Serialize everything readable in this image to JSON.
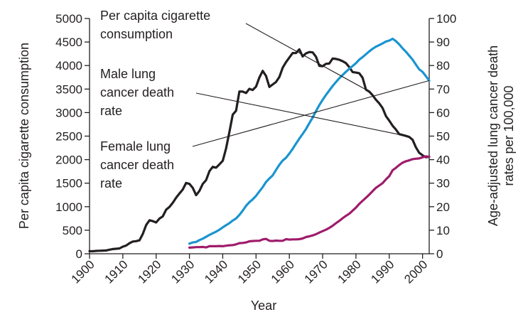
{
  "chart_data": {
    "type": "line",
    "title": "",
    "xlabel": "Year",
    "ylabel_left": "Per capita cigarette consumption",
    "ylabel_right": [
      "Age-adjusted lung cancer death",
      "rates per 100,000"
    ],
    "xlim": [
      1900,
      2002
    ],
    "ylim_left": [
      0,
      5000
    ],
    "ylim_right": [
      0,
      100
    ],
    "x_ticks": [
      1900,
      1910,
      1920,
      1930,
      1940,
      1950,
      1960,
      1970,
      1980,
      1990,
      2000
    ],
    "y_ticks_left": [
      0,
      500,
      1000,
      1500,
      2000,
      2500,
      3000,
      3500,
      4000,
      4500,
      5000
    ],
    "y_ticks_right": [
      0,
      10,
      20,
      30,
      40,
      50,
      60,
      70,
      80,
      90,
      100
    ],
    "grid": false,
    "series": [
      {
        "name": "Per capita cigarette consumption",
        "axis": "left",
        "color": "#231f20",
        "x": [
          1900,
          1901,
          1902,
          1903,
          1904,
          1905,
          1906,
          1907,
          1908,
          1909,
          1910,
          1911,
          1912,
          1913,
          1914,
          1915,
          1916,
          1917,
          1918,
          1919,
          1920,
          1921,
          1922,
          1923,
          1924,
          1925,
          1926,
          1927,
          1928,
          1929,
          1930,
          1931,
          1932,
          1933,
          1934,
          1935,
          1936,
          1937,
          1938,
          1939,
          1940,
          1941,
          1942,
          1943,
          1944,
          1945,
          1946,
          1947,
          1948,
          1949,
          1950,
          1951,
          1952,
          1953,
          1954,
          1955,
          1956,
          1957,
          1958,
          1959,
          1960,
          1961,
          1962,
          1963,
          1964,
          1965,
          1966,
          1967,
          1968,
          1969,
          1970,
          1971,
          1972,
          1973,
          1974,
          1975,
          1976,
          1977,
          1978,
          1979,
          1980,
          1981,
          1982,
          1983,
          1984,
          1985,
          1986,
          1987,
          1988,
          1989,
          1990,
          1991,
          1992,
          1993,
          1994,
          1995,
          1996,
          1997,
          1998,
          1999,
          2000,
          2001,
          2002
        ],
        "values": [
          54,
          53,
          60,
          64,
          66,
          70,
          86,
          99,
          105,
          113,
          151,
          173,
          223,
          260,
          267,
          285,
          421,
          611,
          711,
          693,
          665,
          748,
          795,
          936,
          995,
          1085,
          1191,
          1279,
          1366,
          1504,
          1485,
          1399,
          1245,
          1334,
          1483,
          1564,
          1754,
          1847,
          1830,
          1900,
          1976,
          2236,
          2585,
          2956,
          3039,
          3449,
          3446,
          3416,
          3505,
          3480,
          3552,
          3744,
          3886,
          3778,
          3546,
          3597,
          3650,
          3755,
          3953,
          4073,
          4171,
          4266,
          4265,
          4345,
          4194,
          4258,
          4287,
          4280,
          4186,
          3993,
          3985,
          4037,
          4043,
          4148,
          4141,
          4122,
          4092,
          4051,
          3967,
          3861,
          3851,
          3836,
          3739,
          3488,
          3446,
          3370,
          3274,
          3197,
          3096,
          2926,
          2828,
          2720,
          2641,
          2543,
          2524,
          2505,
          2482,
          2423,
          2261,
          2146,
          2092,
          2051,
          2062
        ]
      },
      {
        "name": "Male lung cancer death rate",
        "axis": "right",
        "color": "#1a94d0",
        "x": [
          1930,
          1931,
          1932,
          1933,
          1934,
          1935,
          1936,
          1937,
          1938,
          1939,
          1940,
          1941,
          1942,
          1943,
          1944,
          1945,
          1946,
          1947,
          1948,
          1949,
          1950,
          1951,
          1952,
          1953,
          1954,
          1955,
          1956,
          1957,
          1958,
          1959,
          1960,
          1961,
          1962,
          1963,
          1964,
          1965,
          1966,
          1967,
          1968,
          1969,
          1970,
          1971,
          1972,
          1973,
          1974,
          1975,
          1976,
          1977,
          1978,
          1979,
          1980,
          1981,
          1982,
          1983,
          1984,
          1985,
          1986,
          1987,
          1988,
          1989,
          1990,
          1991,
          1992,
          1993,
          1994,
          1995,
          1996,
          1997,
          1998,
          1999,
          2000,
          2001,
          2002
        ],
        "values": [
          4.3,
          4.8,
          5.0,
          5.8,
          6.4,
          7.2,
          8.0,
          8.7,
          9.4,
          10.2,
          11.2,
          12.1,
          13.0,
          14.1,
          15.0,
          16.5,
          18.3,
          20.4,
          21.9,
          23.1,
          24.6,
          26.5,
          28.3,
          30.5,
          32.0,
          33.3,
          35.6,
          37.8,
          39.6,
          40.8,
          42.6,
          44.6,
          46.8,
          48.9,
          50.9,
          53.0,
          55.5,
          57.9,
          60.6,
          63.2,
          65.4,
          67.5,
          69.4,
          71.3,
          73.0,
          74.6,
          76.0,
          77.3,
          78.6,
          79.8,
          81.0,
          82.5,
          83.6,
          84.8,
          86.0,
          87.1,
          88.0,
          88.7,
          89.4,
          90.2,
          90.6,
          91.4,
          90.4,
          89.0,
          87.3,
          85.9,
          84.2,
          82.5,
          80.4,
          78.4,
          77.3,
          75.5,
          73.6
        ]
      },
      {
        "name": "Female lung cancer death rate",
        "axis": "right",
        "color": "#9e1c6b",
        "x": [
          1930,
          1931,
          1932,
          1933,
          1934,
          1935,
          1936,
          1937,
          1938,
          1939,
          1940,
          1941,
          1942,
          1943,
          1944,
          1945,
          1946,
          1947,
          1948,
          1949,
          1950,
          1951,
          1952,
          1953,
          1954,
          1955,
          1956,
          1957,
          1958,
          1959,
          1960,
          1961,
          1962,
          1963,
          1964,
          1965,
          1966,
          1967,
          1968,
          1969,
          1970,
          1971,
          1972,
          1973,
          1974,
          1975,
          1976,
          1977,
          1978,
          1979,
          1980,
          1981,
          1982,
          1983,
          1984,
          1985,
          1986,
          1987,
          1988,
          1989,
          1990,
          1991,
          1992,
          1993,
          1994,
          1995,
          1996,
          1997,
          1998,
          1999,
          2000,
          2001,
          2002
        ],
        "values": [
          2.6,
          2.7,
          2.8,
          2.8,
          2.9,
          2.7,
          3.2,
          3.2,
          3.2,
          3.3,
          3.2,
          3.4,
          3.6,
          3.7,
          4.0,
          4.5,
          4.6,
          4.8,
          5.3,
          5.4,
          5.5,
          5.5,
          6.1,
          6.3,
          5.5,
          5.4,
          5.6,
          5.5,
          5.5,
          6.2,
          6.0,
          6.1,
          6.1,
          6.2,
          6.5,
          7.1,
          7.4,
          7.8,
          8.3,
          9.0,
          9.6,
          10.2,
          11.0,
          11.9,
          13.0,
          14.0,
          15.1,
          16.1,
          17.0,
          18.3,
          19.6,
          21.2,
          22.5,
          23.8,
          25.1,
          26.6,
          28.0,
          29.0,
          30.0,
          31.6,
          33.0,
          35.5,
          36.5,
          37.7,
          38.7,
          39.3,
          39.7,
          40.2,
          40.4,
          40.5,
          41.0,
          41.4,
          41.2
        ]
      }
    ],
    "annotations": [
      {
        "id": "cig",
        "lines": [
          "Per capita cigarette",
          "consumption"
        ],
        "target_series": 0,
        "target_x": 1983
      },
      {
        "id": "male",
        "lines": [
          "Male lung",
          "cancer death",
          "rate"
        ],
        "target_series": 0,
        "target_x": 1995
      },
      {
        "id": "female",
        "lines": [
          "Female lung",
          "cancer death",
          "rate"
        ],
        "target_series": 1,
        "target_x": 2002
      }
    ]
  }
}
